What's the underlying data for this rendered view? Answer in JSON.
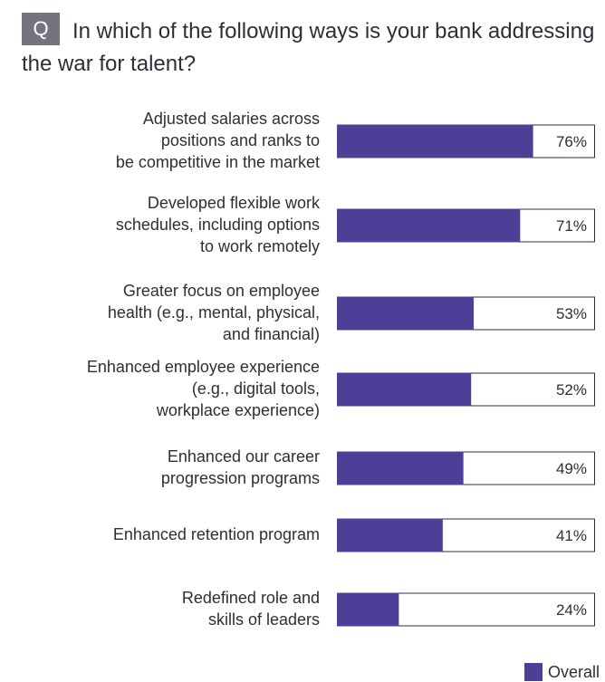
{
  "header": {
    "badge": "Q",
    "question": "In which of the following ways is your bank addressing the war for talent?"
  },
  "chart_data": {
    "type": "bar",
    "orientation": "horizontal",
    "categories": [
      "Adjusted salaries across positions and ranks to be competitive in the market",
      "Developed flexible work schedules, including options to work remotely",
      "Greater focus on employee health (e.g., mental, physical, and financial)",
      "Enhanced employee experience (e.g., digital tools, workplace experience)",
      "Enhanced our career progression programs",
      "Enhanced retention program",
      "Redefined role and skills of leaders"
    ],
    "category_lines": [
      [
        "Adjusted salaries across",
        "positions and ranks to",
        "be competitive in the market"
      ],
      [
        "Developed flexible work",
        "schedules, including options",
        "to work remotely"
      ],
      [
        "Greater focus on employee",
        "health (e.g., mental, physical,",
        "and financial)"
      ],
      [
        "Enhanced employee experience",
        "(e.g., digital tools,",
        "workplace experience)"
      ],
      [
        "Enhanced our career",
        "progression programs"
      ],
      [
        "Enhanced retention program"
      ],
      [
        "Redefined role and",
        "skills of leaders"
      ]
    ],
    "series": [
      {
        "name": "Overall",
        "values": [
          76,
          71,
          53,
          52,
          49,
          41,
          24
        ],
        "labels": [
          "76%",
          "71%",
          "53%",
          "52%",
          "49%",
          "41%",
          "24%"
        ]
      }
    ],
    "xlim": [
      0,
      100
    ],
    "grid": false,
    "legend": "bottom-right",
    "colors": {
      "bar": "#4c3f97",
      "track_border": "#2e2e38"
    }
  }
}
